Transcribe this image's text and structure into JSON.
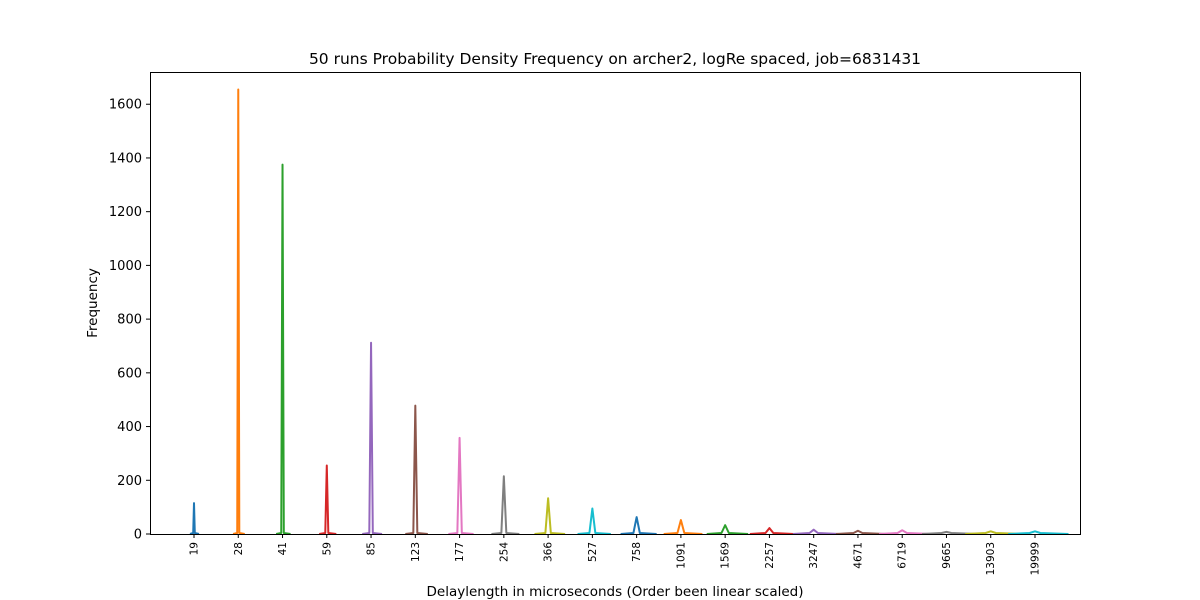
{
  "chart_data": {
    "type": "line",
    "title": "50 runs Probability Density Frequency on archer2, logRe spaced, job=6831431",
    "xlabel": "Delaylength in microseconds (Order been linear scaled)",
    "ylabel": "Frequency",
    "ylim": [
      0,
      1720
    ],
    "yticks": [
      0,
      200,
      400,
      600,
      800,
      1000,
      1200,
      1400,
      1600
    ],
    "grid": false,
    "categories": [
      "19",
      "28",
      "41",
      "59",
      "85",
      "123",
      "177",
      "254",
      "366",
      "527",
      "758",
      "1091",
      "1569",
      "2257",
      "3247",
      "4671",
      "6719",
      "9665",
      "13903",
      "19999"
    ],
    "peaks": [
      115,
      1655,
      1375,
      255,
      712,
      478,
      358,
      215,
      133,
      95,
      63,
      52,
      33,
      22,
      16,
      12,
      14,
      8,
      10,
      10
    ],
    "colors": [
      "#1f77b4",
      "#ff7f0e",
      "#2ca02c",
      "#d62728",
      "#9467bd",
      "#8c564b",
      "#e377c2",
      "#7f7f7f",
      "#bcbd22",
      "#17becf",
      "#1f77b4",
      "#ff7f0e",
      "#2ca02c",
      "#d62728",
      "#9467bd",
      "#8c564b",
      "#e377c2",
      "#7f7f7f",
      "#bcbd22",
      "#17becf"
    ]
  }
}
